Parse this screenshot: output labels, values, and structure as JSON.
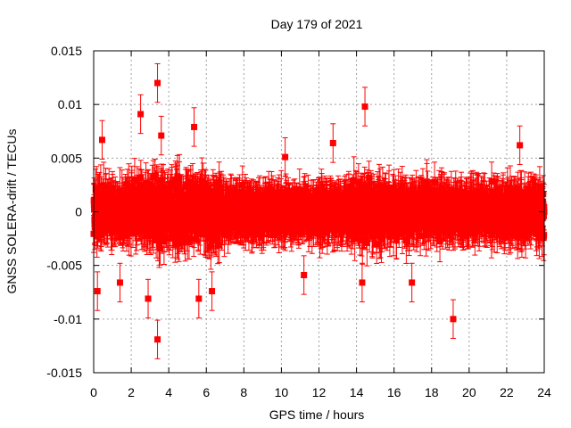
{
  "chart_data": {
    "type": "scatter",
    "title": "Day 179 of 2021",
    "xlabel": "GPS time / hours",
    "ylabel": "GNSS SOLERA-drift / TECUs",
    "xlim": [
      0,
      24
    ],
    "ylim": [
      -0.015,
      0.015
    ],
    "xticks": [
      "0",
      "2",
      "4",
      "6",
      "8",
      "10",
      "12",
      "14",
      "16",
      "18",
      "20",
      "22",
      "24"
    ],
    "yticks": [
      "-0.015",
      "-0.01",
      "-0.005",
      "0",
      "0.005",
      "0.01",
      "0.015"
    ],
    "grid": true,
    "legend": false,
    "series": [
      {
        "color": "#ff0000",
        "marker": "square",
        "error_bars": true,
        "error_bar_size": 0.0018,
        "points_per_hour": 120,
        "base_spread": 0.0016,
        "outliers": [
          {
            "x": 3.4,
            "y": 0.012
          },
          {
            "x": 3.4,
            "y": -0.0119
          },
          {
            "x": 2.5,
            "y": 0.0091
          },
          {
            "x": 14.45,
            "y": 0.0098
          },
          {
            "x": 19.15,
            "y": -0.01
          },
          {
            "x": 0.45,
            "y": 0.0067
          },
          {
            "x": 5.35,
            "y": 0.0079
          },
          {
            "x": 5.6,
            "y": -0.0081
          },
          {
            "x": 6.3,
            "y": -0.0074
          },
          {
            "x": 0.2,
            "y": -0.0074
          },
          {
            "x": 1.4,
            "y": -0.0066
          },
          {
            "x": 2.9,
            "y": -0.0081
          },
          {
            "x": 3.6,
            "y": 0.0071
          },
          {
            "x": 12.75,
            "y": 0.0064
          },
          {
            "x": 14.3,
            "y": -0.0066
          },
          {
            "x": 16.95,
            "y": -0.0066
          },
          {
            "x": 22.7,
            "y": 0.0062
          },
          {
            "x": 10.2,
            "y": 0.0051
          },
          {
            "x": 11.2,
            "y": -0.0059
          }
        ]
      }
    ]
  }
}
